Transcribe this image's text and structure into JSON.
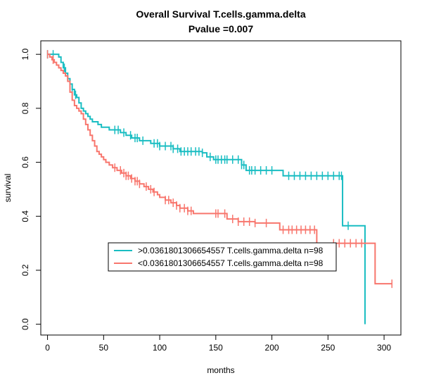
{
  "chart_data": {
    "type": "line",
    "title": "Overall Survival T.cells.gamma.delta",
    "subtitle": "Pvalue =0.007",
    "xlabel": "months",
    "ylabel": "survival",
    "xlim": [
      -6,
      315
    ],
    "ylim": [
      -0.04,
      1.05
    ],
    "xticks": [
      0,
      50,
      100,
      150,
      200,
      250,
      300
    ],
    "yticks": [
      0.0,
      0.2,
      0.4,
      0.6,
      0.8,
      1.0
    ],
    "grid": false,
    "legend_position": "center",
    "series": [
      {
        "name": ">0.0361801306654557 T.cells.gamma.delta n=98",
        "color": "#19BDC2",
        "steps": [
          [
            0,
            1.0
          ],
          [
            10,
            0.99
          ],
          [
            12,
            0.97
          ],
          [
            14,
            0.95
          ],
          [
            16,
            0.93
          ],
          [
            18,
            0.91
          ],
          [
            20,
            0.89
          ],
          [
            22,
            0.87
          ],
          [
            24,
            0.85
          ],
          [
            26,
            0.84
          ],
          [
            28,
            0.82
          ],
          [
            30,
            0.8
          ],
          [
            32,
            0.79
          ],
          [
            34,
            0.78
          ],
          [
            36,
            0.77
          ],
          [
            38,
            0.76
          ],
          [
            40,
            0.75
          ],
          [
            45,
            0.74
          ],
          [
            48,
            0.73
          ],
          [
            55,
            0.72
          ],
          [
            65,
            0.71
          ],
          [
            70,
            0.7
          ],
          [
            75,
            0.69
          ],
          [
            82,
            0.68
          ],
          [
            92,
            0.67
          ],
          [
            100,
            0.66
          ],
          [
            112,
            0.65
          ],
          [
            118,
            0.64
          ],
          [
            138,
            0.635
          ],
          [
            142,
            0.62
          ],
          [
            148,
            0.61
          ],
          [
            173,
            0.59
          ],
          [
            177,
            0.57
          ],
          [
            210,
            0.55
          ],
          [
            263,
            0.365
          ],
          [
            283,
            0.0
          ]
        ],
        "censors": [
          0,
          5,
          15,
          20,
          22,
          25,
          60,
          63,
          68,
          74,
          78,
          80,
          85,
          95,
          98,
          100,
          105,
          110,
          112,
          116,
          119,
          122,
          125,
          128,
          132,
          135,
          138,
          145,
          150,
          152,
          155,
          158,
          160,
          165,
          170,
          173,
          175,
          180,
          182,
          185,
          190,
          195,
          200,
          215,
          220,
          225,
          230,
          235,
          240,
          245,
          250,
          255,
          260,
          262,
          268
        ]
      },
      {
        "name": "<0.0361801306654557 T.cells.gamma.delta n=98",
        "color": "#F8766D",
        "steps": [
          [
            0,
            1.0
          ],
          [
            2,
            0.99
          ],
          [
            4,
            0.98
          ],
          [
            6,
            0.97
          ],
          [
            8,
            0.96
          ],
          [
            10,
            0.95
          ],
          [
            12,
            0.94
          ],
          [
            14,
            0.93
          ],
          [
            16,
            0.92
          ],
          [
            18,
            0.9
          ],
          [
            20,
            0.86
          ],
          [
            22,
            0.83
          ],
          [
            24,
            0.81
          ],
          [
            26,
            0.8
          ],
          [
            28,
            0.79
          ],
          [
            30,
            0.78
          ],
          [
            32,
            0.76
          ],
          [
            34,
            0.74
          ],
          [
            36,
            0.72
          ],
          [
            38,
            0.7
          ],
          [
            40,
            0.68
          ],
          [
            42,
            0.66
          ],
          [
            44,
            0.64
          ],
          [
            46,
            0.63
          ],
          [
            48,
            0.62
          ],
          [
            50,
            0.61
          ],
          [
            52,
            0.6
          ],
          [
            55,
            0.59
          ],
          [
            58,
            0.58
          ],
          [
            62,
            0.57
          ],
          [
            66,
            0.56
          ],
          [
            70,
            0.55
          ],
          [
            74,
            0.54
          ],
          [
            78,
            0.53
          ],
          [
            82,
            0.52
          ],
          [
            86,
            0.51
          ],
          [
            90,
            0.5
          ],
          [
            94,
            0.49
          ],
          [
            98,
            0.48
          ],
          [
            100,
            0.47
          ],
          [
            105,
            0.46
          ],
          [
            110,
            0.45
          ],
          [
            115,
            0.44
          ],
          [
            118,
            0.43
          ],
          [
            125,
            0.42
          ],
          [
            130,
            0.41
          ],
          [
            160,
            0.39
          ],
          [
            170,
            0.38
          ],
          [
            185,
            0.375
          ],
          [
            207,
            0.35
          ],
          [
            240,
            0.3
          ],
          [
            292,
            0.15
          ]
        ],
        "censors": [
          0,
          5,
          60,
          65,
          68,
          70,
          72,
          75,
          78,
          80,
          82,
          88,
          92,
          95,
          105,
          108,
          112,
          115,
          118,
          122,
          125,
          128,
          150,
          152,
          158,
          165,
          170,
          175,
          180,
          185,
          195,
          210,
          215,
          218,
          222,
          226,
          230,
          234,
          238,
          255,
          260,
          265,
          270,
          275,
          280,
          307
        ]
      }
    ]
  }
}
